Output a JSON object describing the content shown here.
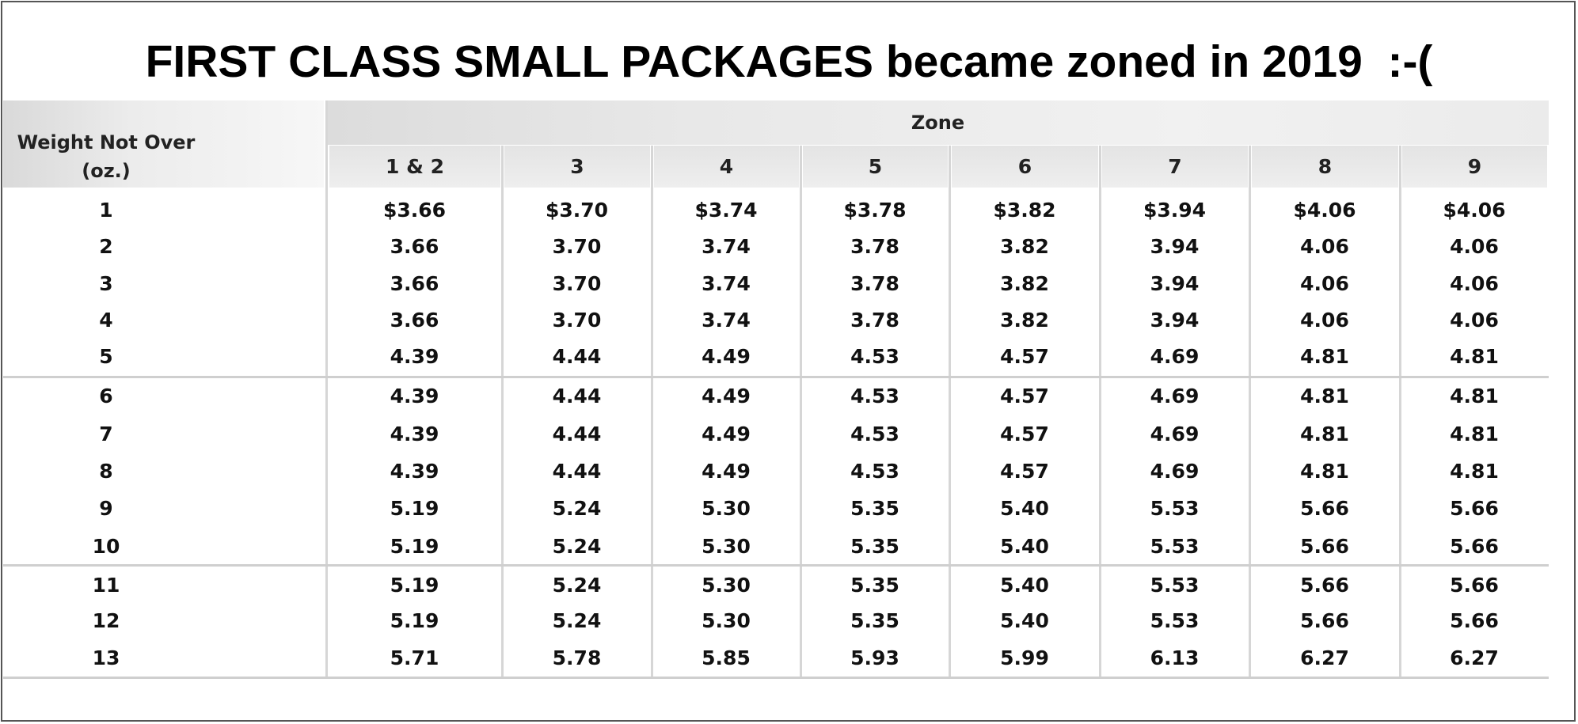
{
  "title": "FIRST CLASS SMALL PACKAGES became zoned in 2019  :-(",
  "table": {
    "weight_header_line1": "Weight Not Over",
    "weight_header_line2": "(oz.)",
    "zone_header": "Zone",
    "zones": [
      "1 & 2",
      "3",
      "4",
      "5",
      "6",
      "7",
      "8",
      "9"
    ],
    "rows": [
      {
        "weight": "1",
        "prices": [
          "$3.66",
          "$3.70",
          "$3.74",
          "$3.78",
          "$3.82",
          "$3.94",
          "$4.06",
          "$4.06"
        ]
      },
      {
        "weight": "2",
        "prices": [
          "3.66",
          "3.70",
          "3.74",
          "3.78",
          "3.82",
          "3.94",
          "4.06",
          "4.06"
        ]
      },
      {
        "weight": "3",
        "prices": [
          "3.66",
          "3.70",
          "3.74",
          "3.78",
          "3.82",
          "3.94",
          "4.06",
          "4.06"
        ]
      },
      {
        "weight": "4",
        "prices": [
          "3.66",
          "3.70",
          "3.74",
          "3.78",
          "3.82",
          "3.94",
          "4.06",
          "4.06"
        ]
      },
      {
        "weight": "5",
        "prices": [
          "4.39",
          "4.44",
          "4.49",
          "4.53",
          "4.57",
          "4.69",
          "4.81",
          "4.81"
        ]
      },
      {
        "weight": "6",
        "prices": [
          "4.39",
          "4.44",
          "4.49",
          "4.53",
          "4.57",
          "4.69",
          "4.81",
          "4.81"
        ]
      },
      {
        "weight": "7",
        "prices": [
          "4.39",
          "4.44",
          "4.49",
          "4.53",
          "4.57",
          "4.69",
          "4.81",
          "4.81"
        ]
      },
      {
        "weight": "8",
        "prices": [
          "4.39",
          "4.44",
          "4.49",
          "4.53",
          "4.57",
          "4.69",
          "4.81",
          "4.81"
        ]
      },
      {
        "weight": "9",
        "prices": [
          "5.19",
          "5.24",
          "5.30",
          "5.35",
          "5.40",
          "5.53",
          "5.66",
          "5.66"
        ]
      },
      {
        "weight": "10",
        "prices": [
          "5.19",
          "5.24",
          "5.30",
          "5.35",
          "5.40",
          "5.53",
          "5.66",
          "5.66"
        ]
      },
      {
        "weight": "11",
        "prices": [
          "5.19",
          "5.24",
          "5.30",
          "5.35",
          "5.40",
          "5.53",
          "5.66",
          "5.66"
        ]
      },
      {
        "weight": "12",
        "prices": [
          "5.19",
          "5.24",
          "5.30",
          "5.35",
          "5.40",
          "5.53",
          "5.66",
          "5.66"
        ]
      },
      {
        "weight": "13",
        "prices": [
          "5.71",
          "5.78",
          "5.85",
          "5.93",
          "5.99",
          "6.13",
          "6.27",
          "6.27"
        ]
      }
    ]
  }
}
